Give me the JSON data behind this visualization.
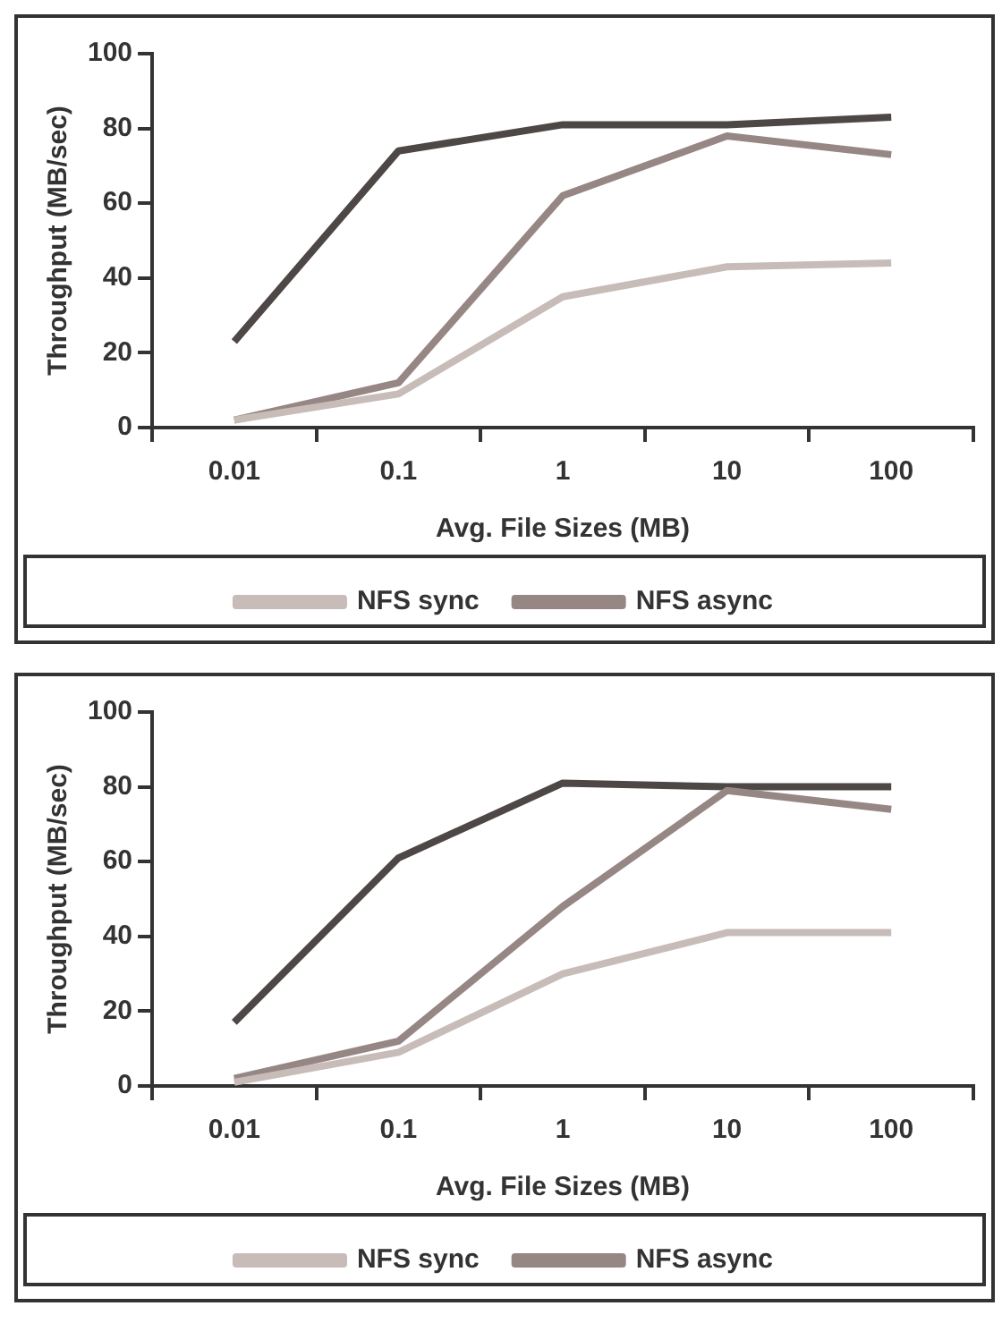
{
  "chart_data": [
    {
      "type": "line",
      "xlabel": "Avg. File Sizes (MB)",
      "ylabel": "Throughput (MB/sec)",
      "categories": [
        "0.01",
        "0.1",
        "1",
        "10",
        "100"
      ],
      "ylim": [
        0,
        100
      ],
      "yticks": [
        0,
        20,
        40,
        60,
        80,
        100
      ],
      "grid": false,
      "legend": "bottom",
      "marker": "none",
      "line_style": "solid",
      "series": [
        {
          "name": "NFS sync",
          "color": "#c8bcb9",
          "values": [
            2,
            9,
            35,
            43,
            44
          ]
        },
        {
          "name": "NFS async",
          "color": "#968784",
          "values": [
            2,
            12,
            62,
            78,
            73
          ]
        },
        {
          "color": "#4d4746",
          "values": [
            23,
            74,
            81,
            81,
            83
          ]
        }
      ]
    },
    {
      "type": "line",
      "xlabel": "Avg. File Sizes (MB)",
      "ylabel": "Throughput (MB/sec)",
      "categories": [
        "0.01",
        "0.1",
        "1",
        "10",
        "100"
      ],
      "ylim": [
        0,
        100
      ],
      "yticks": [
        0,
        20,
        40,
        60,
        80,
        100
      ],
      "grid": false,
      "legend": "bottom",
      "marker": "none",
      "line_style": "solid",
      "series": [
        {
          "name": "NFS sync",
          "color": "#c8bcb9",
          "values": [
            1,
            9,
            30,
            41,
            41
          ]
        },
        {
          "name": "NFS async",
          "color": "#968784",
          "values": [
            2,
            12,
            48,
            79,
            74
          ]
        },
        {
          "color": "#4d4746",
          "values": [
            17,
            61,
            81,
            80,
            80
          ]
        }
      ]
    }
  ]
}
